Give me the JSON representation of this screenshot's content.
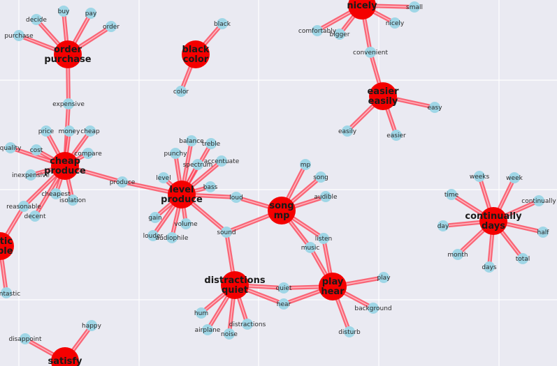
{
  "nodes": [
    {
      "id": "h_nicely",
      "type": "hub",
      "lines": [
        "nicely"
      ]
    },
    {
      "id": "small",
      "type": "leaf",
      "label": "small"
    },
    {
      "id": "comfortably",
      "type": "leaf",
      "label": "comfortably"
    },
    {
      "id": "bigger",
      "type": "leaf",
      "label": "bigger"
    },
    {
      "id": "nicely_leaf",
      "type": "leaf",
      "label": "nicely"
    },
    {
      "id": "convenient",
      "type": "leaf",
      "label": "convenient"
    },
    {
      "id": "h_easier",
      "type": "hub",
      "lines": [
        "easier",
        "easily"
      ]
    },
    {
      "id": "easy",
      "type": "leaf",
      "label": "easy"
    },
    {
      "id": "easily",
      "type": "leaf",
      "label": "easily"
    },
    {
      "id": "easier",
      "type": "leaf",
      "label": "easier"
    },
    {
      "id": "h_order",
      "type": "hub",
      "lines": [
        "order",
        "purchase"
      ]
    },
    {
      "id": "buy",
      "type": "leaf",
      "label": "buy"
    },
    {
      "id": "pay",
      "type": "leaf",
      "label": "pay"
    },
    {
      "id": "decide",
      "type": "leaf",
      "label": "decide"
    },
    {
      "id": "order",
      "type": "leaf",
      "label": "order"
    },
    {
      "id": "purchase",
      "type": "leaf",
      "label": "purchase"
    },
    {
      "id": "expensive",
      "type": "leaf",
      "label": "expensive"
    },
    {
      "id": "h_black",
      "type": "hub",
      "lines": [
        "black",
        "color"
      ]
    },
    {
      "id": "black",
      "type": "leaf",
      "label": "black"
    },
    {
      "id": "color",
      "type": "leaf",
      "label": "color"
    },
    {
      "id": "h_cheap",
      "type": "hub",
      "lines": [
        "cheap",
        "produce"
      ]
    },
    {
      "id": "price",
      "type": "leaf",
      "label": "price"
    },
    {
      "id": "money",
      "type": "leaf",
      "label": "money"
    },
    {
      "id": "cheap",
      "type": "leaf",
      "label": "cheap"
    },
    {
      "id": "quality",
      "type": "leaf",
      "label": "quality"
    },
    {
      "id": "cost",
      "type": "leaf",
      "label": "cost"
    },
    {
      "id": "compare",
      "type": "leaf",
      "label": "compare"
    },
    {
      "id": "inexpensive",
      "type": "leaf",
      "label": "inexpensive"
    },
    {
      "id": "cheapest",
      "type": "leaf",
      "label": "cheapest"
    },
    {
      "id": "isolation",
      "type": "leaf",
      "label": "isolation"
    },
    {
      "id": "reasonable",
      "type": "leaf",
      "label": "reasonable"
    },
    {
      "id": "decent",
      "type": "leaf",
      "label": "decent"
    },
    {
      "id": "produce",
      "type": "leaf",
      "label": "produce"
    },
    {
      "id": "h_level",
      "type": "hub",
      "lines": [
        "level",
        "produce"
      ]
    },
    {
      "id": "balance",
      "type": "leaf",
      "label": "balance"
    },
    {
      "id": "treble",
      "type": "leaf",
      "label": "treble"
    },
    {
      "id": "punchy",
      "type": "leaf",
      "label": "punchy"
    },
    {
      "id": "accentuate",
      "type": "leaf",
      "label": "accentuate"
    },
    {
      "id": "spectrum",
      "type": "leaf",
      "label": "spectrum"
    },
    {
      "id": "level",
      "type": "leaf",
      "label": "level"
    },
    {
      "id": "bass",
      "type": "leaf",
      "label": "bass"
    },
    {
      "id": "loud",
      "type": "leaf",
      "label": "loud"
    },
    {
      "id": "gain",
      "type": "leaf",
      "label": "gain"
    },
    {
      "id": "volume",
      "type": "leaf",
      "label": "volume"
    },
    {
      "id": "louder",
      "type": "leaf",
      "label": "louder"
    },
    {
      "id": "audiophile",
      "type": "leaf",
      "label": "audiophile"
    },
    {
      "id": "sound",
      "type": "leaf",
      "label": "sound"
    },
    {
      "id": "h_song",
      "type": "hub",
      "lines": [
        "song",
        "mp"
      ]
    },
    {
      "id": "mp",
      "type": "leaf",
      "label": "mp"
    },
    {
      "id": "song",
      "type": "leaf",
      "label": "song"
    },
    {
      "id": "audible",
      "type": "leaf",
      "label": "audible"
    },
    {
      "id": "listen",
      "type": "leaf",
      "label": "listen"
    },
    {
      "id": "music",
      "type": "leaf",
      "label": "music"
    },
    {
      "id": "h_distr",
      "type": "hub",
      "lines": [
        "distractions",
        "quiet"
      ]
    },
    {
      "id": "quiet",
      "type": "leaf",
      "label": "quiet"
    },
    {
      "id": "hear",
      "type": "leaf",
      "label": "hear"
    },
    {
      "id": "hum",
      "type": "leaf",
      "label": "hum"
    },
    {
      "id": "airplane",
      "type": "leaf",
      "label": "airplane"
    },
    {
      "id": "noise",
      "type": "leaf",
      "label": "noise"
    },
    {
      "id": "distractions",
      "type": "leaf",
      "label": "distractions"
    },
    {
      "id": "h_play",
      "type": "hub",
      "lines": [
        "play",
        "hear"
      ]
    },
    {
      "id": "play",
      "type": "leaf",
      "label": "play"
    },
    {
      "id": "background",
      "type": "leaf",
      "label": "background"
    },
    {
      "id": "disturb",
      "type": "leaf",
      "label": "disturb"
    },
    {
      "id": "h_cont",
      "type": "hub",
      "lines": [
        "continually",
        "days"
      ]
    },
    {
      "id": "weeks",
      "type": "leaf",
      "label": "weeks"
    },
    {
      "id": "week",
      "type": "leaf",
      "label": "week"
    },
    {
      "id": "time",
      "type": "leaf",
      "label": "time"
    },
    {
      "id": "continually",
      "type": "leaf",
      "label": "continually"
    },
    {
      "id": "day",
      "type": "leaf",
      "label": "day"
    },
    {
      "id": "half",
      "type": "leaf",
      "label": "half"
    },
    {
      "id": "month",
      "type": "leaf",
      "label": "month"
    },
    {
      "id": "total",
      "type": "leaf",
      "label": "total"
    },
    {
      "id": "days",
      "type": "leaf",
      "label": "days"
    },
    {
      "id": "h_stic",
      "type": "hub",
      "lines": [
        "stic",
        "ible"
      ]
    },
    {
      "id": "ntastic",
      "type": "leaf",
      "label": "ntastic"
    },
    {
      "id": "h_satisfy",
      "type": "hub",
      "lines": [
        "satisfy"
      ]
    },
    {
      "id": "happy",
      "type": "leaf",
      "label": "happy"
    },
    {
      "id": "disappoint",
      "type": "leaf",
      "label": "disappoint"
    }
  ],
  "edges": [
    [
      "h_nicely",
      "small"
    ],
    [
      "h_nicely",
      "comfortably"
    ],
    [
      "h_nicely",
      "bigger"
    ],
    [
      "h_nicely",
      "nicely_leaf"
    ],
    [
      "h_nicely",
      "convenient"
    ],
    [
      "convenient",
      "h_easier"
    ],
    [
      "h_easier",
      "easy"
    ],
    [
      "h_easier",
      "easily"
    ],
    [
      "h_easier",
      "easier"
    ],
    [
      "h_order",
      "buy"
    ],
    [
      "h_order",
      "pay"
    ],
    [
      "h_order",
      "decide"
    ],
    [
      "h_order",
      "order"
    ],
    [
      "h_order",
      "purchase"
    ],
    [
      "h_order",
      "expensive"
    ],
    [
      "expensive",
      "h_cheap"
    ],
    [
      "h_black",
      "black"
    ],
    [
      "h_black",
      "color"
    ],
    [
      "h_cheap",
      "price"
    ],
    [
      "h_cheap",
      "money"
    ],
    [
      "h_cheap",
      "cheap"
    ],
    [
      "h_cheap",
      "quality"
    ],
    [
      "h_cheap",
      "cost"
    ],
    [
      "h_cheap",
      "compare"
    ],
    [
      "h_cheap",
      "inexpensive"
    ],
    [
      "h_cheap",
      "cheapest"
    ],
    [
      "h_cheap",
      "isolation"
    ],
    [
      "h_cheap",
      "reasonable"
    ],
    [
      "h_cheap",
      "decent"
    ],
    [
      "h_cheap",
      "produce"
    ],
    [
      "reasonable",
      "h_stic"
    ],
    [
      "h_stic",
      "ntastic"
    ],
    [
      "produce",
      "h_level"
    ],
    [
      "h_level",
      "balance"
    ],
    [
      "h_level",
      "treble"
    ],
    [
      "h_level",
      "punchy"
    ],
    [
      "h_level",
      "accentuate"
    ],
    [
      "h_level",
      "spectrum"
    ],
    [
      "h_level",
      "level"
    ],
    [
      "h_level",
      "bass"
    ],
    [
      "h_level",
      "loud"
    ],
    [
      "h_level",
      "gain"
    ],
    [
      "h_level",
      "volume"
    ],
    [
      "h_level",
      "louder"
    ],
    [
      "h_level",
      "audiophile"
    ],
    [
      "h_level",
      "sound"
    ],
    [
      "loud",
      "h_song"
    ],
    [
      "sound",
      "h_song"
    ],
    [
      "sound",
      "h_distr"
    ],
    [
      "h_song",
      "mp"
    ],
    [
      "h_song",
      "song"
    ],
    [
      "h_song",
      "audible"
    ],
    [
      "h_song",
      "listen"
    ],
    [
      "h_song",
      "music"
    ],
    [
      "listen",
      "h_play"
    ],
    [
      "music",
      "h_play"
    ],
    [
      "h_distr",
      "quiet"
    ],
    [
      "h_distr",
      "hear"
    ],
    [
      "h_distr",
      "hum"
    ],
    [
      "h_distr",
      "airplane"
    ],
    [
      "h_distr",
      "noise"
    ],
    [
      "h_distr",
      "distractions"
    ],
    [
      "quiet",
      "h_play"
    ],
    [
      "hear",
      "h_play"
    ],
    [
      "h_play",
      "play"
    ],
    [
      "h_play",
      "background"
    ],
    [
      "h_play",
      "disturb"
    ],
    [
      "h_cont",
      "weeks"
    ],
    [
      "h_cont",
      "week"
    ],
    [
      "h_cont",
      "time"
    ],
    [
      "h_cont",
      "continually"
    ],
    [
      "h_cont",
      "day"
    ],
    [
      "h_cont",
      "half"
    ],
    [
      "h_cont",
      "month"
    ],
    [
      "h_cont",
      "total"
    ],
    [
      "h_cont",
      "days"
    ],
    [
      "h_satisfy",
      "happy"
    ],
    [
      "h_satisfy",
      "disappoint"
    ]
  ]
}
